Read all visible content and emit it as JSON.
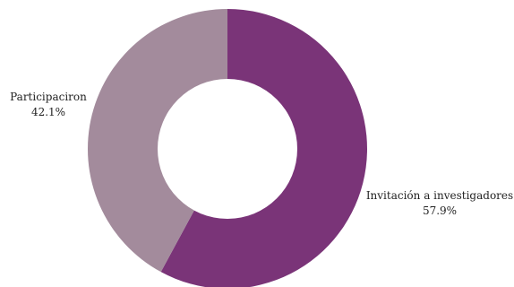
{
  "chart_data": {
    "type": "pie",
    "donut": true,
    "start_angle_deg": 0,
    "direction": "clockwise",
    "title": "",
    "slices": [
      {
        "label": "Invitación a investigadores",
        "value": 57.9,
        "value_label": "57.9%",
        "color": "#7a3478"
      },
      {
        "label": "Participaciron",
        "value": 42.1,
        "value_label": "42.1%",
        "color": "#a38b9c"
      }
    ],
    "legend": "none",
    "labels_position": "outside"
  }
}
